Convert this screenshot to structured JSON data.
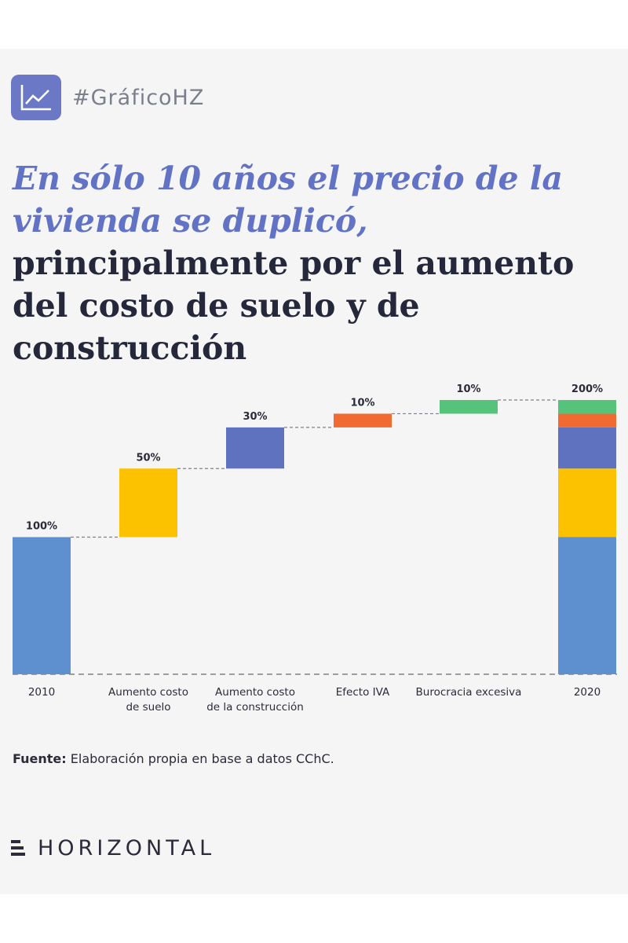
{
  "header": {
    "hashtag": "#GráficoHZ",
    "icon": "line-chart-icon"
  },
  "headline": {
    "accent": "En sólo 10 años el precio de la vivienda se duplicó,",
    "rest": "principalmente por el aumento del costo de suelo y de construcción"
  },
  "chart_data": {
    "type": "bar",
    "subtype": "waterfall",
    "ylim": [
      0,
      200
    ],
    "grid": false,
    "categories": [
      "2010",
      "Aumento costo de suelo",
      "Aumento costo de la construcción",
      "Efecto IVA",
      "Burocracia excesiva",
      "2020"
    ],
    "category_lines": [
      [
        "2010"
      ],
      [
        "Aumento costo",
        "de suelo"
      ],
      [
        "Aumento costo",
        "de la construcción"
      ],
      [
        "Efecto IVA"
      ],
      [
        "Burocracia excesiva"
      ],
      [
        "2020"
      ]
    ],
    "values": [
      100,
      50,
      30,
      10,
      10,
      200
    ],
    "labels": [
      "100%",
      "50%",
      "30%",
      "10%",
      "10%",
      "200%"
    ],
    "colors": [
      "#5e8fcf",
      "#fcc200",
      "#5f72c0",
      "#f06a32",
      "#55c47a",
      null
    ]
  },
  "source": {
    "label": "Fuente:",
    "text": " Elaboración propia en base a datos CChC."
  },
  "brand": {
    "name": "HORIZONTAL",
    "icon": "horizontal-logo-icon"
  }
}
